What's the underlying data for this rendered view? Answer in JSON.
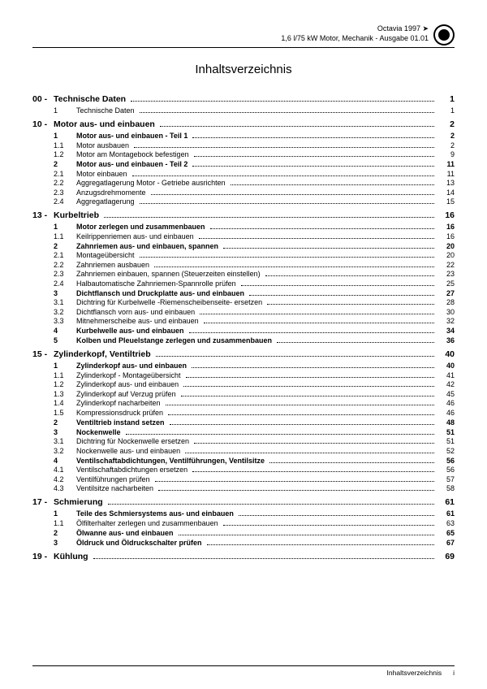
{
  "header": {
    "line1": "Octavia 1997 ➤",
    "line2": "1,6 l/75 kW Motor, Mechanik - Ausgabe 01.01"
  },
  "title": "Inhaltsverzeichnis",
  "sections": [
    {
      "num": "00 -",
      "title": "Technische Daten",
      "page": "1",
      "entries": [
        {
          "num": "1",
          "text": "Technische Daten",
          "page": "1",
          "bold": false
        }
      ]
    },
    {
      "num": "10 -",
      "title": "Motor aus- und einbauen",
      "page": "2",
      "entries": [
        {
          "num": "1",
          "text": "Motor aus- und einbauen - Teil 1",
          "page": "2",
          "bold": true
        },
        {
          "num": "1.1",
          "text": "Motor ausbauen",
          "page": "2",
          "bold": false
        },
        {
          "num": "1.2",
          "text": "Motor am Montagebock befestigen",
          "page": "9",
          "bold": false
        },
        {
          "num": "2",
          "text": "Motor aus- und einbauen - Teil 2",
          "page": "11",
          "bold": true
        },
        {
          "num": "2.1",
          "text": "Motor einbauen",
          "page": "11",
          "bold": false
        },
        {
          "num": "2.2",
          "text": "Aggregatlagerung Motor - Getriebe ausrichten",
          "page": "13",
          "bold": false
        },
        {
          "num": "2.3",
          "text": "Anzugsdrehmomente",
          "page": "14",
          "bold": false
        },
        {
          "num": "2.4",
          "text": "Aggregatlagerung",
          "page": "15",
          "bold": false
        }
      ]
    },
    {
      "num": "13 -",
      "title": "Kurbeltrieb",
      "page": "16",
      "entries": [
        {
          "num": "1",
          "text": "Motor zerlegen und zusammenbauen",
          "page": "16",
          "bold": true
        },
        {
          "num": "1.1",
          "text": "Keilrippenriemen aus- und einbauen",
          "page": "16",
          "bold": false
        },
        {
          "num": "2",
          "text": "Zahnriemen aus- und einbauen, spannen",
          "page": "20",
          "bold": true
        },
        {
          "num": "2.1",
          "text": "Montageübersicht",
          "page": "20",
          "bold": false
        },
        {
          "num": "2.2",
          "text": "Zahnriemen ausbauen",
          "page": "22",
          "bold": false
        },
        {
          "num": "2.3",
          "text": "Zahnriemen einbauen, spannen (Steuerzeiten einstellen)",
          "page": "23",
          "bold": false
        },
        {
          "num": "2.4",
          "text": "Halbautomatische Zahnriemen-Spannrolle prüfen",
          "page": "25",
          "bold": false
        },
        {
          "num": "3",
          "text": "Dichtflansch und Druckplatte aus- und einbauen",
          "page": "27",
          "bold": true
        },
        {
          "num": "3.1",
          "text": "Dichtring für Kurbelwelle -Riemenscheibenseite- ersetzen",
          "page": "28",
          "bold": false
        },
        {
          "num": "3.2",
          "text": "Dichtflansch vorn aus- und einbauen",
          "page": "30",
          "bold": false
        },
        {
          "num": "3.3",
          "text": "Mitnehmerscheibe aus- und einbauen",
          "page": "32",
          "bold": false
        },
        {
          "num": "4",
          "text": "Kurbelwelle aus- und einbauen",
          "page": "34",
          "bold": true
        },
        {
          "num": "5",
          "text": "Kolben und Pleuelstange zerlegen und zusammenbauen",
          "page": "36",
          "bold": true
        }
      ]
    },
    {
      "num": "15 -",
      "title": "Zylinderkopf, Ventiltrieb",
      "page": "40",
      "entries": [
        {
          "num": "1",
          "text": "Zylinderkopf aus- und einbauen",
          "page": "40",
          "bold": true
        },
        {
          "num": "1.1",
          "text": "Zylinderkopf - Montageübersicht",
          "page": "41",
          "bold": false
        },
        {
          "num": "1.2",
          "text": "Zylinderkopf aus- und einbauen",
          "page": "42",
          "bold": false
        },
        {
          "num": "1.3",
          "text": "Zylinderkopf auf Verzug prüfen",
          "page": "45",
          "bold": false
        },
        {
          "num": "1.4",
          "text": "Zylinderkopf nacharbeiten",
          "page": "46",
          "bold": false
        },
        {
          "num": "1.5",
          "text": "Kompressionsdruck prüfen",
          "page": "46",
          "bold": false
        },
        {
          "num": "2",
          "text": "Ventiltrieb instand setzen",
          "page": "48",
          "bold": true
        },
        {
          "num": "3",
          "text": "Nockenwelle",
          "page": "51",
          "bold": true
        },
        {
          "num": "3.1",
          "text": "Dichtring für Nockenwelle ersetzen",
          "page": "51",
          "bold": false
        },
        {
          "num": "3.2",
          "text": "Nockenwelle aus- und einbauen",
          "page": "52",
          "bold": false
        },
        {
          "num": "4",
          "text": "Ventilschaftabdichtungen, Ventilführungen, Ventilsitze",
          "page": "56",
          "bold": true
        },
        {
          "num": "4.1",
          "text": "Ventilschaftabdichtungen ersetzen",
          "page": "56",
          "bold": false
        },
        {
          "num": "4.2",
          "text": "Ventilführungen prüfen",
          "page": "57",
          "bold": false
        },
        {
          "num": "4.3",
          "text": "Ventilsitze nacharbeiten",
          "page": "58",
          "bold": false
        }
      ]
    },
    {
      "num": "17 -",
      "title": "Schmierung",
      "page": "61",
      "entries": [
        {
          "num": "1",
          "text": "Teile des Schmiersystems aus- und einbauen",
          "page": "61",
          "bold": true
        },
        {
          "num": "1.1",
          "text": "Ölfilterhalter zerlegen und zusammenbauen",
          "page": "63",
          "bold": false
        },
        {
          "num": "2",
          "text": "Ölwanne aus- und einbauen",
          "page": "65",
          "bold": true
        },
        {
          "num": "3",
          "text": "Öldruck und Öldruckschalter prüfen",
          "page": "67",
          "bold": true
        }
      ]
    },
    {
      "num": "19 -",
      "title": "Kühlung",
      "page": "69",
      "entries": []
    }
  ],
  "footer": {
    "label": "Inhaltsverzeichnis",
    "page": "i"
  }
}
